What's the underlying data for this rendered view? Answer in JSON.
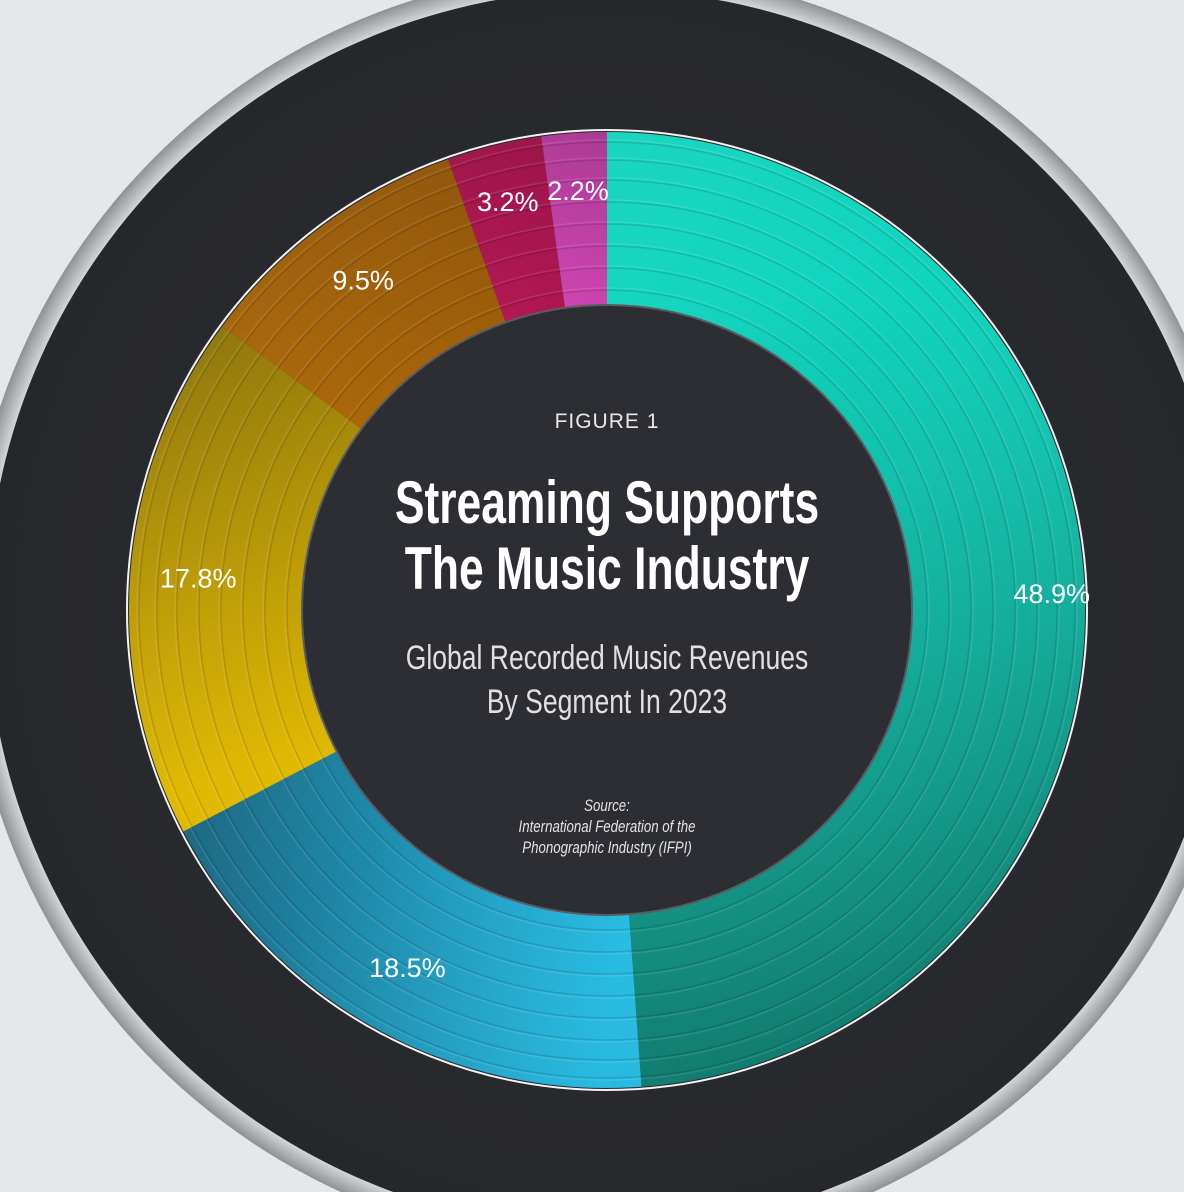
{
  "header": {
    "figure_label": "FIGURE 1",
    "title_line1": "Streaming Supports",
    "title_line2": "The Music Industry",
    "subtitle_line1": "Global Recorded Music Revenues",
    "subtitle_line2": "By Segment In 2023",
    "source_line1": "Source:",
    "source_line2": "International Federation of the",
    "source_line3": "Phonographic Industry (IFPI)"
  },
  "chart_data": {
    "type": "pie",
    "title": "Streaming Supports The Music Industry",
    "subtitle": "Global Recorded Music Revenues By Segment In 2023",
    "source": "International Federation of the Phonographic Industry (IFPI)",
    "legend": "none",
    "slices": [
      {
        "label": "48.9%",
        "value": 48.9,
        "color_light": "#11d4bd",
        "color_dark": "#0b7d70"
      },
      {
        "label": "18.5%",
        "value": 18.5,
        "color_light": "#23bde6",
        "color_dark": "#1b6782"
      },
      {
        "label": "17.8%",
        "value": 17.8,
        "color_light": "#e0b800",
        "color_dark": "#8a7000"
      },
      {
        "label": "9.5%",
        "value": 9.5,
        "color_light": "#a86200",
        "color_dark": "#8c4f00"
      },
      {
        "label": "3.2%",
        "value": 3.2,
        "color_light": "#b0104e",
        "color_dark": "#980a40"
      },
      {
        "label": "2.2%",
        "value": 2.2,
        "color_light": "#cc3fb0",
        "color_dark": "#a83290"
      }
    ]
  }
}
